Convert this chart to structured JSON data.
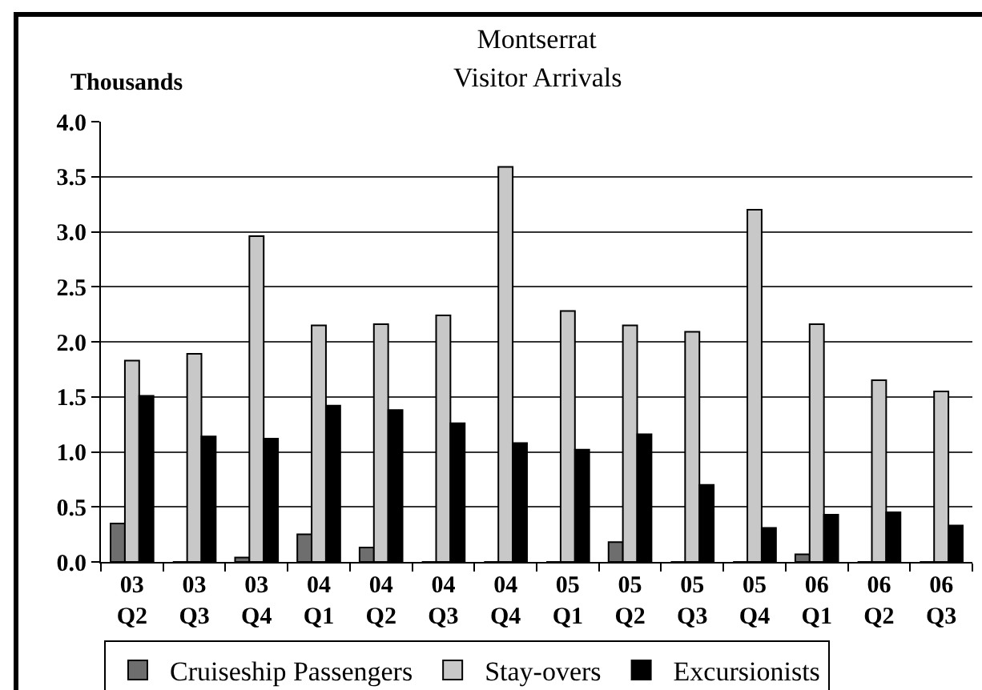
{
  "chart_data": {
    "type": "bar",
    "title": "Montserrat",
    "subtitle": "Visitor Arrivals",
    "ylabel": "Thousands",
    "categories": [
      "03\nQ2",
      "03\nQ3",
      "03\nQ4",
      "04\nQ1",
      "04\nQ2",
      "04\nQ3",
      "04\nQ4",
      "05\nQ1",
      "05\nQ2",
      "05\nQ3",
      "05\nQ4",
      "06\nQ1",
      "06\nQ2",
      "06\nQ3"
    ],
    "series": [
      {
        "name": "Cruiseship Passengers",
        "color": "#6e6e6e",
        "values": [
          0.35,
          0,
          0.04,
          0.25,
          0.13,
          0,
          0,
          0,
          0.18,
          0,
          0,
          0.07,
          0,
          0
        ]
      },
      {
        "name": "Stay-overs",
        "color": "#c8c8c8",
        "values": [
          1.83,
          1.89,
          2.96,
          2.15,
          2.16,
          2.24,
          3.59,
          2.28,
          2.15,
          2.09,
          3.2,
          2.16,
          1.65,
          1.55
        ]
      },
      {
        "name": "Excursionists",
        "color": "#000000",
        "values": [
          1.51,
          1.14,
          1.12,
          1.42,
          1.38,
          1.26,
          1.08,
          1.02,
          1.16,
          0.7,
          0.31,
          0.43,
          0.45,
          0.33
        ]
      }
    ],
    "ylim": [
      0,
      4
    ],
    "yticks": [
      {
        "value": 0,
        "label": "0.0"
      },
      {
        "value": 0.5,
        "label": "0.5"
      },
      {
        "value": 1,
        "label": "1.0"
      },
      {
        "value": 1.5,
        "label": "1.5"
      },
      {
        "value": 2,
        "label": "2.0"
      },
      {
        "value": 2.5,
        "label": "2.5"
      },
      {
        "value": 3,
        "label": "3.0"
      },
      {
        "value": 3.5,
        "label": "3.5"
      },
      {
        "value": 4,
        "label": "4.0"
      }
    ],
    "grid": "y",
    "legend": "bottom"
  }
}
